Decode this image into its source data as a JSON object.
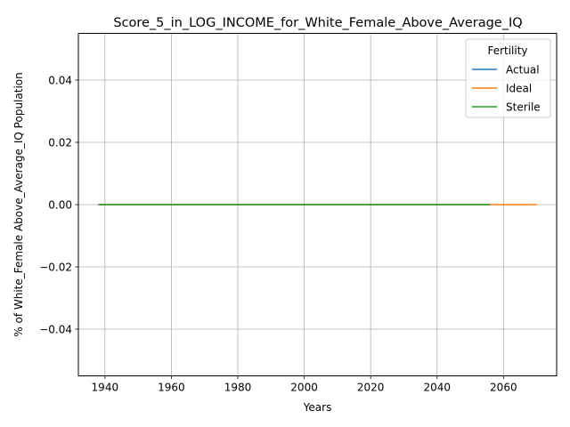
{
  "chart_data": {
    "type": "line",
    "title": "Score_5_in_LOG_INCOME_for_White_Female_Above_Average_IQ",
    "xlabel": "Years",
    "ylabel": "% of White_Female Above_Average_IQ Population",
    "xlim": [
      1932,
      2076
    ],
    "ylim": [
      -0.055,
      0.055
    ],
    "xticks": [
      1940,
      1960,
      1980,
      2000,
      2020,
      2040,
      2060
    ],
    "yticks": [
      -0.04,
      -0.02,
      0.0,
      0.02,
      0.04
    ],
    "ytick_labels": [
      "−0.04",
      "−0.02",
      "0.00",
      "0.02",
      "0.04"
    ],
    "grid": true,
    "legend": {
      "title": "Fertility",
      "placement": "top-right"
    },
    "series": [
      {
        "name": "Actual",
        "color": "#1f77b4",
        "x": [
          1938,
          2056
        ],
        "y": [
          0.0,
          0.0
        ]
      },
      {
        "name": "Ideal",
        "color": "#ff7f0e",
        "x": [
          1938,
          2070
        ],
        "y": [
          0.0,
          0.0
        ]
      },
      {
        "name": "Sterile",
        "color": "#2ca02c",
        "x": [
          1938,
          2056
        ],
        "y": [
          0.0,
          0.0
        ]
      }
    ]
  }
}
